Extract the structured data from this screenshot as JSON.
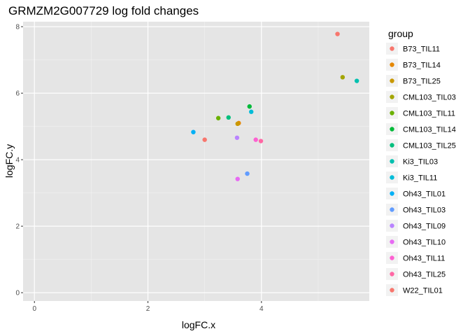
{
  "chart_data": {
    "type": "scatter",
    "title": "GRMZM2G007729 log fold changes",
    "xlabel": "logFC.x",
    "ylabel": "logFC.y",
    "xlim": [
      -0.2,
      5.9
    ],
    "ylim": [
      -0.25,
      8.15
    ],
    "x_ticks": [
      0,
      2,
      4
    ],
    "y_ticks": [
      0,
      2,
      4,
      6,
      8
    ],
    "x_tick_labels": [
      "0",
      "2",
      "4"
    ],
    "y_tick_labels": [
      "0",
      "2",
      "4",
      "6",
      "8"
    ],
    "grid": true,
    "panel_background": "#e5e5e5",
    "legend": {
      "title": "group",
      "placement": "right",
      "entries": [
        {
          "label": "B73_TIL11",
          "color": "#F8766D"
        },
        {
          "label": "B73_TIL14",
          "color": "#E58700"
        },
        {
          "label": "B73_TIL25",
          "color": "#C99800"
        },
        {
          "label": "CML103_TIL03",
          "color": "#A3A500"
        },
        {
          "label": "CML103_TIL11",
          "color": "#6BB100"
        },
        {
          "label": "CML103_TIL14",
          "color": "#00BA38"
        },
        {
          "label": "CML103_TIL25",
          "color": "#00BF7D"
        },
        {
          "label": "Ki3_TIL03",
          "color": "#00C0AF"
        },
        {
          "label": "Ki3_TIL11",
          "color": "#00BCD8"
        },
        {
          "label": "Oh43_TIL01",
          "color": "#00B0F6"
        },
        {
          "label": "Oh43_TIL03",
          "color": "#619CFF"
        },
        {
          "label": "Oh43_TIL09",
          "color": "#B983FF"
        },
        {
          "label": "Oh43_TIL10",
          "color": "#E76BF3"
        },
        {
          "label": "Oh43_TIL11",
          "color": "#FD61D1"
        },
        {
          "label": "Oh43_TIL25",
          "color": "#FF67A4"
        },
        {
          "label": "W22_TIL01",
          "color": "#F8766D"
        }
      ]
    },
    "points": [
      {
        "group": "B73_TIL11",
        "x": 3.0,
        "y": 4.6
      },
      {
        "group": "B73_TIL14",
        "x": 3.6,
        "y": 5.1
      },
      {
        "group": "B73_TIL25",
        "x": 3.58,
        "y": 5.08
      },
      {
        "group": "CML103_TIL03",
        "x": 5.43,
        "y": 6.48
      },
      {
        "group": "CML103_TIL11",
        "x": 3.24,
        "y": 5.25
      },
      {
        "group": "CML103_TIL14",
        "x": 3.79,
        "y": 5.6
      },
      {
        "group": "CML103_TIL25",
        "x": 3.42,
        "y": 5.27
      },
      {
        "group": "Ki3_TIL03",
        "x": 5.68,
        "y": 6.37
      },
      {
        "group": "Ki3_TIL11",
        "x": 3.82,
        "y": 5.44
      },
      {
        "group": "Oh43_TIL01",
        "x": 2.8,
        "y": 4.83
      },
      {
        "group": "Oh43_TIL03",
        "x": 3.75,
        "y": 3.58
      },
      {
        "group": "Oh43_TIL09",
        "x": 3.57,
        "y": 4.66
      },
      {
        "group": "Oh43_TIL10",
        "x": 3.58,
        "y": 3.42
      },
      {
        "group": "Oh43_TIL11",
        "x": 3.9,
        "y": 4.6
      },
      {
        "group": "Oh43_TIL25",
        "x": 3.99,
        "y": 4.56
      },
      {
        "group": "W22_TIL01",
        "x": 5.34,
        "y": 7.78
      }
    ]
  }
}
